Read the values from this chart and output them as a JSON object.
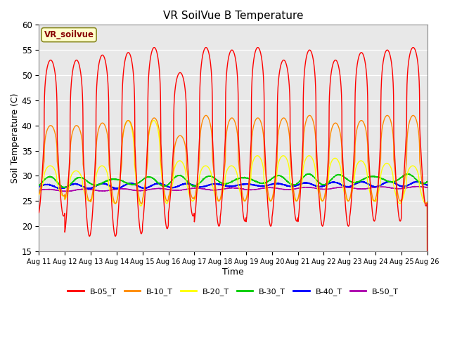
{
  "title": "VR SoilVue B Temperature",
  "xlabel": "Time",
  "ylabel": "Soil Temperature (C)",
  "ylim": [
    15,
    60
  ],
  "annotation": "VR_soilvue",
  "background_color": "#e8e8e8",
  "legend_entries": [
    "B-05_T",
    "B-10_T",
    "B-20_T",
    "B-30_T",
    "B-40_T",
    "B-50_T"
  ],
  "legend_colors": [
    "#ff0000",
    "#ff8800",
    "#ffff00",
    "#00cc00",
    "#0000ff",
    "#aa00aa"
  ],
  "tick_labels": [
    "Aug 11",
    "Aug 12",
    "Aug 13",
    "Aug 14",
    "Aug 15",
    "Aug 16",
    "Aug 17",
    "Aug 18",
    "Aug 19",
    "Aug 20",
    "Aug 21",
    "Aug 22",
    "Aug 23",
    "Aug 24",
    "Aug 25",
    "Aug 26"
  ],
  "series_colors": [
    "#ff0000",
    "#ff8800",
    "#ffff00",
    "#00cc00",
    "#0000ff",
    "#aa00aa"
  ],
  "n_days": 15,
  "fig_width": 6.4,
  "fig_height": 4.8,
  "dpi": 100
}
